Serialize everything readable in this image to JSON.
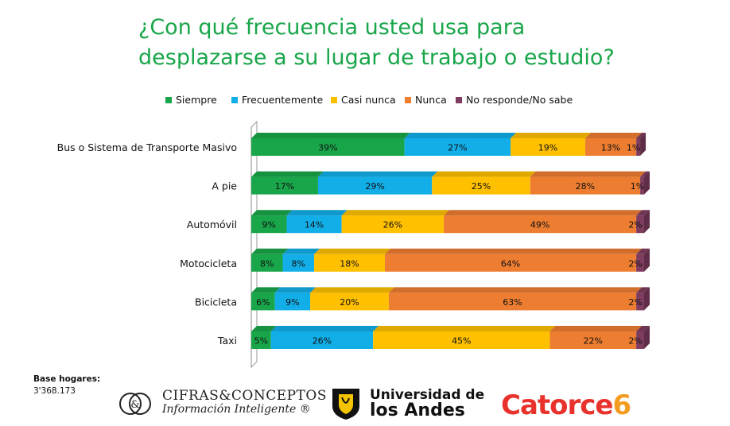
{
  "title_line1": "¿Con qué frecuencia usted usa para",
  "title_line2": "desplazarse a su lugar de trabajo o estudio?",
  "colors": {
    "siempre": "#19a64a",
    "frecuentemente": "#12aee8",
    "casi_nunca": "#ffc000",
    "nunca": "#ed7d31",
    "no_responde": "#7e3c5e",
    "title": "#19a64a"
  },
  "legend": [
    {
      "label": "Siempre",
      "color": "#19a64a"
    },
    {
      "label": "Frecuentemente",
      "color": "#12aee8"
    },
    {
      "label": "Casi nunca",
      "color": "#ffc000"
    },
    {
      "label": "Nunca",
      "color": "#ed7d31"
    },
    {
      "label": "No responde/No sabe",
      "color": "#7e3c5e"
    }
  ],
  "chart_data": {
    "type": "bar",
    "orientation": "horizontal",
    "stacked": "percent",
    "categories": [
      "Bus o Sistema de Transporte Masivo",
      "A pie",
      "Automóvil",
      "Motocicleta",
      "Bicicleta",
      "Taxi"
    ],
    "series": [
      {
        "name": "Siempre",
        "values": [
          39,
          17,
          9,
          8,
          6,
          5
        ]
      },
      {
        "name": "Frecuentemente",
        "values": [
          27,
          29,
          14,
          8,
          9,
          26
        ]
      },
      {
        "name": "Casi nunca",
        "values": [
          19,
          25,
          26,
          18,
          20,
          45
        ]
      },
      {
        "name": "Nunca",
        "values": [
          13,
          28,
          49,
          64,
          63,
          22
        ]
      },
      {
        "name": "No responde/No sabe",
        "values": [
          1,
          1,
          2,
          2,
          2,
          2
        ]
      }
    ],
    "value_suffix": "%",
    "legend_position": "top",
    "grid": false
  },
  "footer": {
    "base_label": "Base hogares:",
    "base_value": "3'368.173"
  },
  "logos": {
    "cifras_line1": "CIFRAS&CONCEPTOS",
    "cifras_line2": "Información Inteligente ®",
    "andes_line1": "Universidad de",
    "andes_line2": "los Andes",
    "catorce_text": "Catorce",
    "catorce_num": "6"
  }
}
